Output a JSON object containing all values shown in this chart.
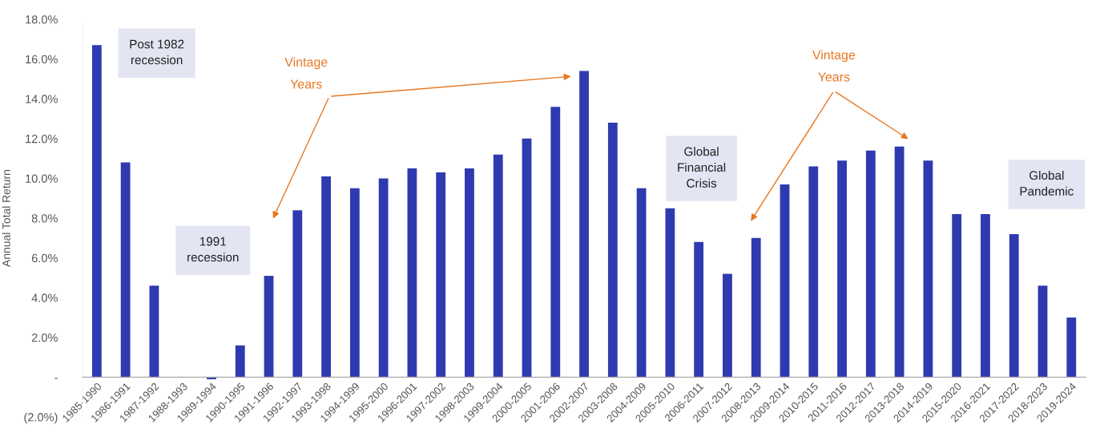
{
  "chart_data": {
    "type": "bar",
    "ylabel": "Annual Total Return",
    "categories": [
      "1985-1990",
      "1986-1991",
      "1987-1992",
      "1988-1993",
      "1989-1994",
      "1990-1995",
      "1991-1996",
      "1992-1997",
      "1993-1998",
      "1994-1999",
      "1995-2000",
      "1996-2001",
      "1997-2002",
      "1998-2003",
      "1999-2004",
      "2000-2005",
      "2001-2006",
      "2002-2007",
      "2003-2008",
      "2004-2009",
      "2005-2010",
      "2006-2011",
      "2007-2012",
      "2008-2013",
      "2009-2014",
      "2010-2015",
      "2011-2016",
      "2012-2017",
      "2013-2018",
      "2014-2019",
      "2015-2020",
      "2016-2021",
      "2017-2022",
      "2018-2023",
      "2019-2024"
    ],
    "values": [
      16.7,
      10.8,
      4.6,
      0,
      -0.1,
      1.6,
      5.1,
      8.4,
      10.1,
      9.5,
      10.0,
      10.5,
      10.3,
      10.5,
      11.2,
      12.0,
      13.6,
      15.4,
      12.8,
      9.5,
      8.5,
      6.8,
      5.2,
      7.0,
      9.7,
      10.6,
      10.9,
      11.4,
      11.6,
      10.9,
      8.2,
      8.2,
      7.2,
      4.6,
      3.0
    ],
    "color": "#2e3ab0",
    "ylim": [
      -2,
      18
    ],
    "yticks": [
      {
        "value": -2,
        "label": "(2.0%)"
      },
      {
        "value": 0,
        "label": "-"
      },
      {
        "value": 2,
        "label": "2.0%"
      },
      {
        "value": 4,
        "label": "4.0%"
      },
      {
        "value": 6,
        "label": "6.0%"
      },
      {
        "value": 8,
        "label": "8.0%"
      },
      {
        "value": 10,
        "label": "10.0%"
      },
      {
        "value": 12,
        "label": "12.0%"
      },
      {
        "value": 14,
        "label": "14.0%"
      },
      {
        "value": 16,
        "label": "16.0%"
      },
      {
        "value": 18,
        "label": "18.0%"
      }
    ],
    "grid": false,
    "annotations": [
      "Post 1982\nrecession",
      "1991\nrecession",
      "Vintage\n\nYears",
      "Global\nFinancial\nCrisis",
      "Vintage\n\nYears",
      "Global\nPandemic"
    ]
  }
}
